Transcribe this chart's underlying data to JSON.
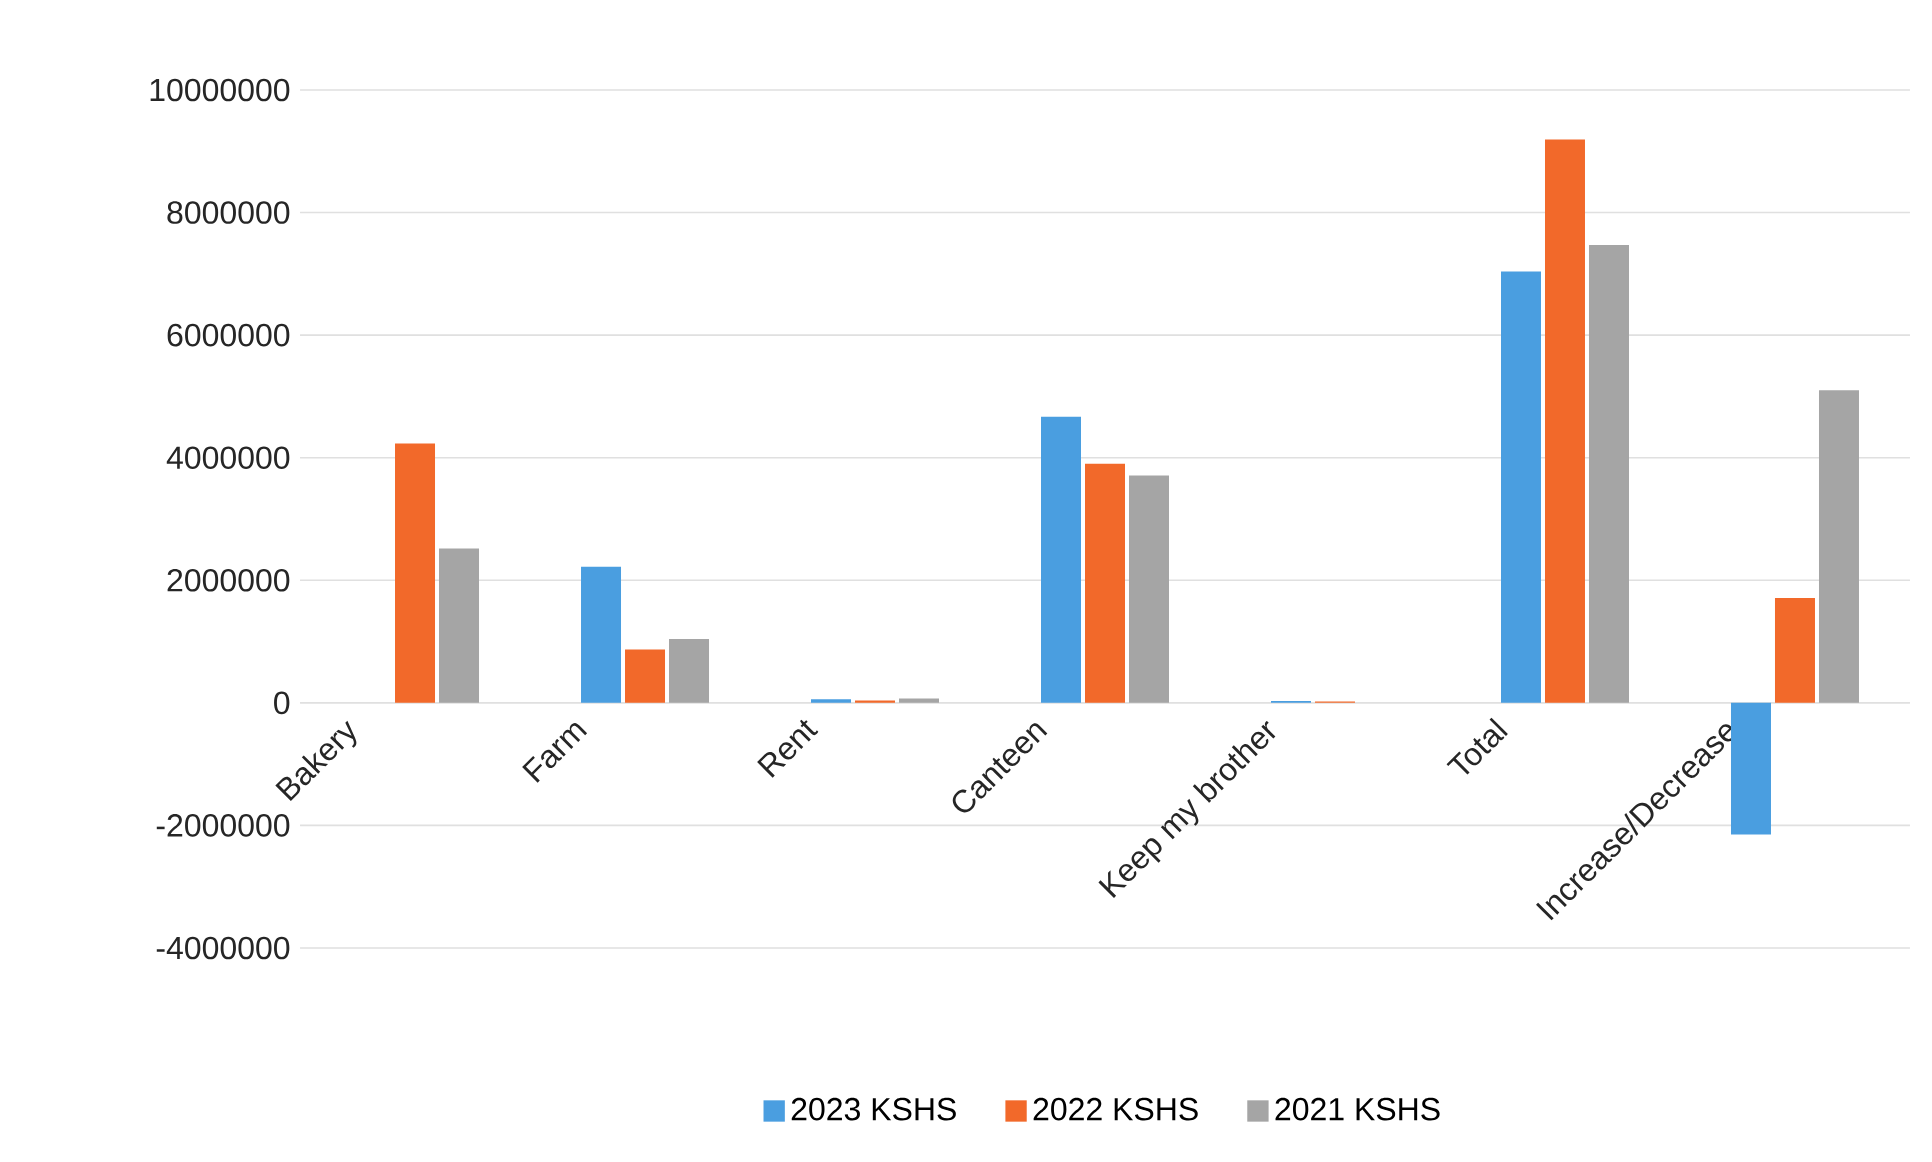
{
  "chart_data": {
    "type": "bar",
    "categories": [
      "Bakery",
      "Farm",
      "Rent",
      "Canteen",
      "Keep my brother",
      "Total",
      "Increase/Decrease"
    ],
    "series": [
      {
        "name": "2023 KSHS",
        "color": "#4a9ee0",
        "values": [
          null,
          2220000,
          60000,
          4670000,
          30000,
          7040000,
          -2150000
        ]
      },
      {
        "name": "2022 KSHS",
        "color": "#f2692a",
        "values": [
          4230000,
          870000,
          40000,
          3900000,
          20000,
          9190000,
          1710000
        ]
      },
      {
        "name": "2021 KSHS",
        "color": "#a5a5a5",
        "values": [
          2520000,
          1040000,
          70000,
          3710000,
          null,
          7470000,
          5100000
        ]
      }
    ],
    "ylim": [
      -4000000,
      10000000
    ],
    "yticks": [
      -4000000,
      -2000000,
      0,
      2000000,
      4000000,
      6000000,
      8000000,
      10000000
    ],
    "grid": "y",
    "legend": "bottom"
  }
}
